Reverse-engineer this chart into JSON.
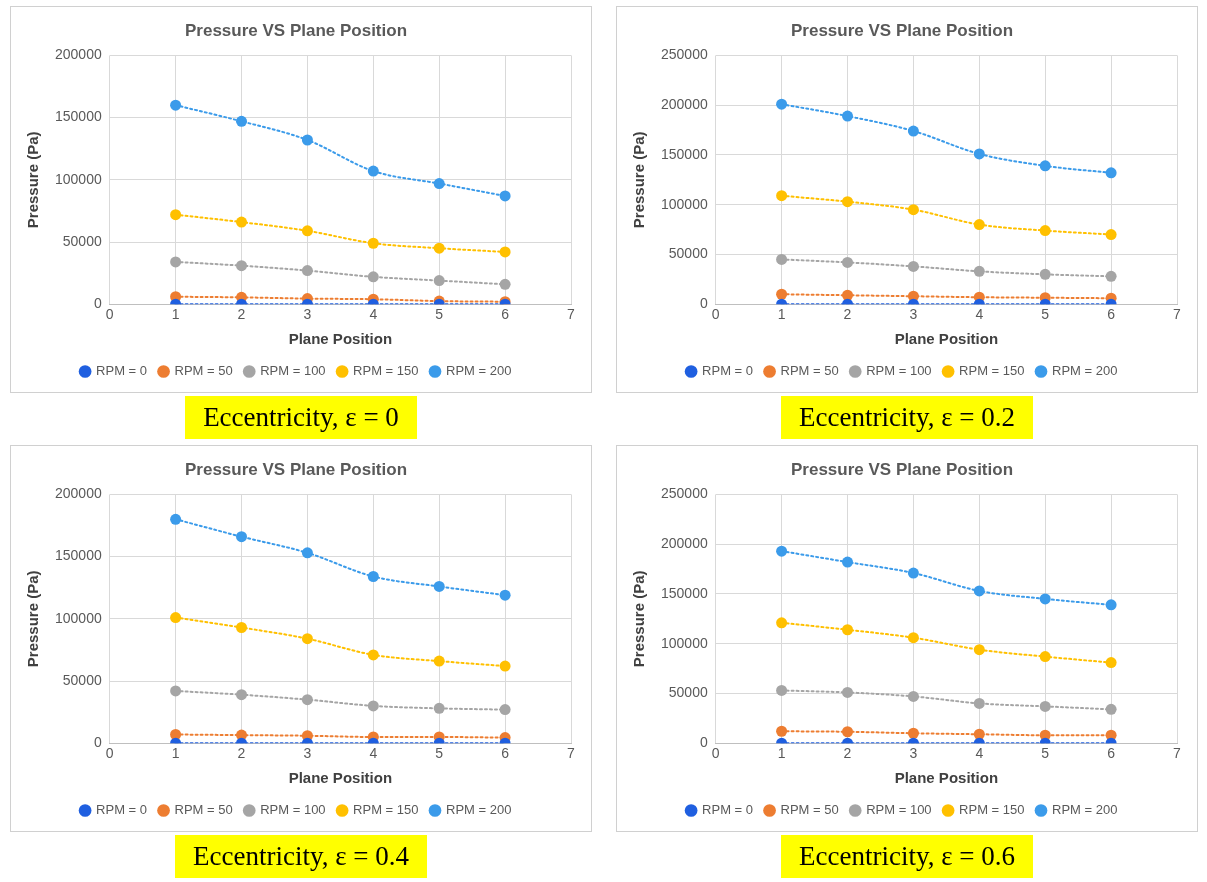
{
  "chart_data": [
    {
      "type": "line",
      "title": "Pressure VS Plane Position",
      "xlabel": "Plane Position",
      "ylabel": "Pressure (Pa)",
      "x": [
        1,
        2,
        3,
        4,
        5,
        6
      ],
      "xlim": [
        0,
        7
      ],
      "xticks": [
        0,
        1,
        2,
        3,
        4,
        5,
        6,
        7
      ],
      "ylim": [
        0,
        200000
      ],
      "yticks": [
        0,
        50000,
        100000,
        150000,
        200000
      ],
      "grid": true,
      "legend": "bottom",
      "marker": "circle",
      "line_style": "dotted",
      "annotations": [
        "Eccentricity, ε = 0"
      ],
      "series": [
        {
          "name": "RPM = 0",
          "color": "#1f5fe0",
          "values": [
            0,
            0,
            0,
            0,
            0,
            0
          ]
        },
        {
          "name": "RPM = 50",
          "color": "#ed7d31",
          "values": [
            6000,
            5500,
            4500,
            4000,
            2500,
            2000
          ]
        },
        {
          "name": "RPM = 100",
          "color": "#a5a5a5",
          "values": [
            34000,
            31000,
            27000,
            22000,
            19000,
            16000
          ]
        },
        {
          "name": "RPM = 150",
          "color": "#ffc000",
          "values": [
            72000,
            66000,
            59000,
            49000,
            45000,
            42000
          ]
        },
        {
          "name": "RPM = 200",
          "color": "#3b9bea",
          "values": [
            160000,
            147000,
            132000,
            107000,
            97000,
            87000
          ]
        }
      ]
    },
    {
      "type": "line",
      "title": "Pressure VS Plane Position",
      "xlabel": "Plane Position",
      "ylabel": "Pressure (Pa)",
      "x": [
        1,
        2,
        3,
        4,
        5,
        6
      ],
      "xlim": [
        0,
        7
      ],
      "xticks": [
        0,
        1,
        2,
        3,
        4,
        5,
        6,
        7
      ],
      "ylim": [
        0,
        250000
      ],
      "yticks": [
        0,
        50000,
        100000,
        150000,
        200000,
        250000
      ],
      "grid": true,
      "legend": "bottom",
      "marker": "circle",
      "line_style": "dotted",
      "annotations": [
        "Eccentricity, ε = 0.2"
      ],
      "series": [
        {
          "name": "RPM = 0",
          "color": "#1f5fe0",
          "values": [
            0,
            0,
            0,
            0,
            0,
            0
          ]
        },
        {
          "name": "RPM = 50",
          "color": "#ed7d31",
          "values": [
            10000,
            9000,
            8000,
            7000,
            6500,
            6000
          ]
        },
        {
          "name": "RPM = 100",
          "color": "#a5a5a5",
          "values": [
            45000,
            42000,
            38000,
            33000,
            30000,
            28000
          ]
        },
        {
          "name": "RPM = 150",
          "color": "#ffc000",
          "values": [
            109000,
            103000,
            95000,
            80000,
            74000,
            70000
          ]
        },
        {
          "name": "RPM = 200",
          "color": "#3b9bea",
          "values": [
            201000,
            189000,
            174000,
            151000,
            139000,
            132000
          ]
        }
      ]
    },
    {
      "type": "line",
      "title": "Pressure VS Plane Position",
      "xlabel": "Plane Position",
      "ylabel": "Pressure (Pa)",
      "x": [
        1,
        2,
        3,
        4,
        5,
        6
      ],
      "xlim": [
        0,
        7
      ],
      "xticks": [
        0,
        1,
        2,
        3,
        4,
        5,
        6,
        7
      ],
      "ylim": [
        0,
        200000
      ],
      "yticks": [
        0,
        50000,
        100000,
        150000,
        200000
      ],
      "grid": true,
      "legend": "bottom",
      "marker": "circle",
      "line_style": "dotted",
      "annotations": [
        "Eccentricity, ε = 0.4"
      ],
      "series": [
        {
          "name": "RPM = 0",
          "color": "#1f5fe0",
          "values": [
            0,
            0,
            0,
            0,
            0,
            0
          ]
        },
        {
          "name": "RPM = 50",
          "color": "#ed7d31",
          "values": [
            7000,
            6500,
            6000,
            5000,
            5000,
            4500
          ]
        },
        {
          "name": "RPM = 100",
          "color": "#a5a5a5",
          "values": [
            42000,
            39000,
            35000,
            30000,
            28000,
            27000
          ]
        },
        {
          "name": "RPM = 150",
          "color": "#ffc000",
          "values": [
            101000,
            93000,
            84000,
            71000,
            66000,
            62000
          ]
        },
        {
          "name": "RPM = 200",
          "color": "#3b9bea",
          "values": [
            180000,
            166000,
            153000,
            134000,
            126000,
            119000
          ]
        }
      ]
    },
    {
      "type": "line",
      "title": "Pressure VS Plane Position",
      "xlabel": "Plane Position",
      "ylabel": "Pressure (Pa)",
      "x": [
        1,
        2,
        3,
        4,
        5,
        6
      ],
      "xlim": [
        0,
        7
      ],
      "xticks": [
        0,
        1,
        2,
        3,
        4,
        5,
        6,
        7
      ],
      "ylim": [
        0,
        250000
      ],
      "yticks": [
        0,
        50000,
        100000,
        150000,
        200000,
        250000
      ],
      "grid": true,
      "legend": "bottom",
      "marker": "circle",
      "line_style": "dotted",
      "annotations": [
        "Eccentricity, ε = 0.6"
      ],
      "series": [
        {
          "name": "RPM = 0",
          "color": "#1f5fe0",
          "values": [
            0,
            0,
            0,
            0,
            0,
            0
          ]
        },
        {
          "name": "RPM = 50",
          "color": "#ed7d31",
          "values": [
            12000,
            11500,
            10000,
            9000,
            8000,
            8000
          ]
        },
        {
          "name": "RPM = 100",
          "color": "#a5a5a5",
          "values": [
            53000,
            51000,
            47000,
            40000,
            37000,
            34000
          ]
        },
        {
          "name": "RPM = 150",
          "color": "#ffc000",
          "values": [
            121000,
            114000,
            106000,
            94000,
            87000,
            81000
          ]
        },
        {
          "name": "RPM = 200",
          "color": "#3b9bea",
          "values": [
            193000,
            182000,
            171000,
            153000,
            145000,
            139000
          ]
        }
      ]
    }
  ]
}
